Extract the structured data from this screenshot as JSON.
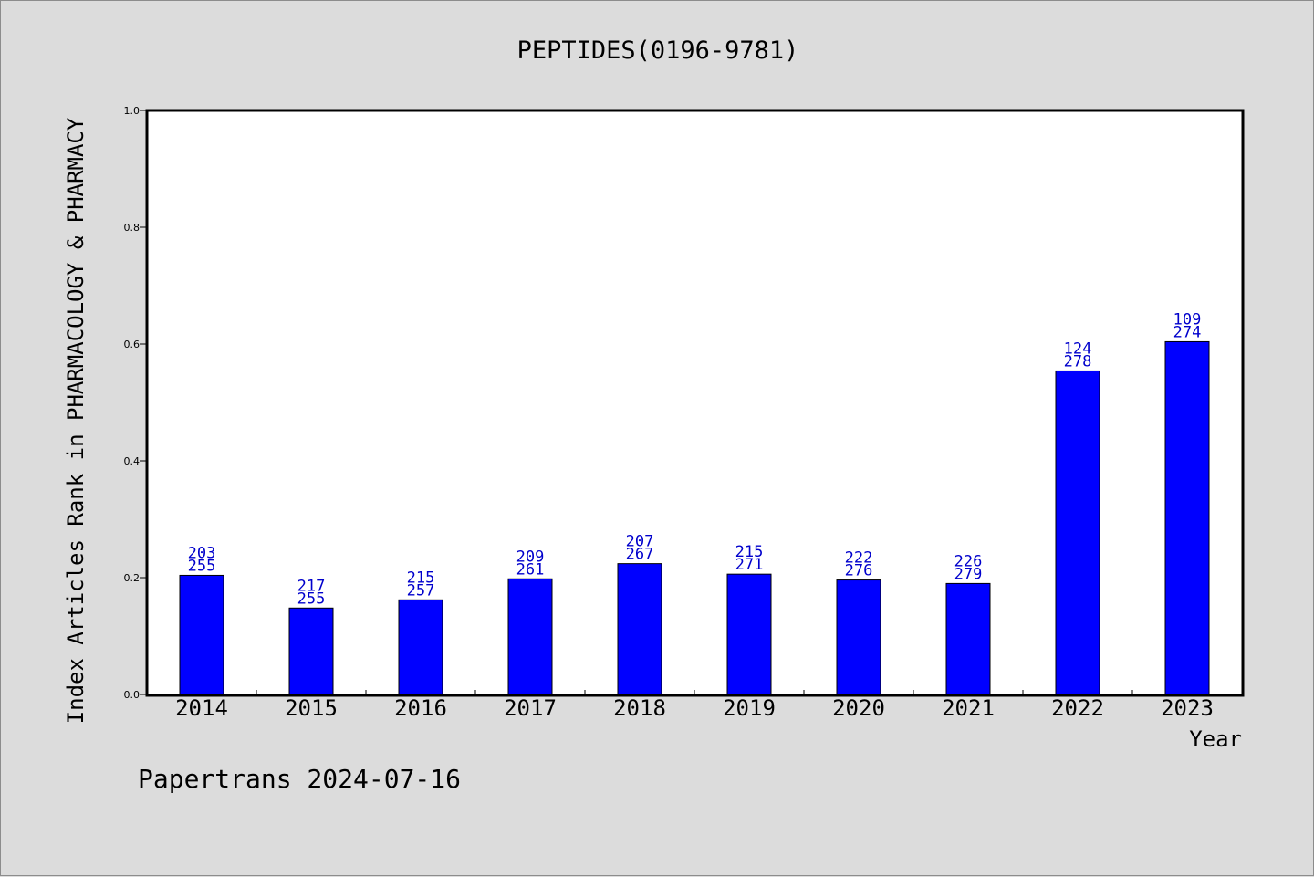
{
  "chart_data": {
    "type": "bar",
    "title": "PEPTIDES(0196-9781)",
    "xlabel": "Year",
    "ylabel": "Index Articles Rank in PHARMACOLOGY & PHARMACY",
    "ylim": [
      0,
      1.0
    ],
    "yticks": [
      "0.0",
      "0.2",
      "0.4",
      "0.6",
      "0.8",
      "1.0"
    ],
    "categories": [
      "2014",
      "2015",
      "2016",
      "2017",
      "2018",
      "2019",
      "2020",
      "2021",
      "2022",
      "2023"
    ],
    "values": [
      0.204,
      0.148,
      0.162,
      0.198,
      0.224,
      0.206,
      0.196,
      0.19,
      0.554,
      0.604
    ],
    "rank_labels": [
      "203",
      "217",
      "215",
      "209",
      "207",
      "215",
      "222",
      "226",
      "124",
      "109"
    ],
    "total_labels": [
      "255",
      "255",
      "257",
      "261",
      "267",
      "271",
      "276",
      "279",
      "278",
      "274"
    ],
    "bar_color": "#0000ff",
    "label_color": "#0000cc",
    "grid": false,
    "legend": "none"
  },
  "footer": "Papertrans 2024-07-16"
}
